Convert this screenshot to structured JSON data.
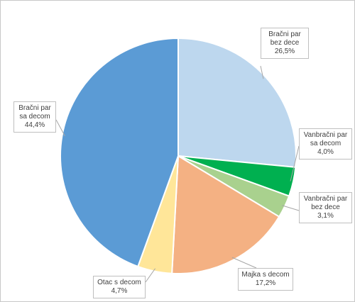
{
  "chart_data": {
    "type": "pie",
    "slices": [
      {
        "label_lines": [
          "Bračni par",
          "bez dece"
        ],
        "value_label": "26,5%",
        "value": 26.5,
        "color": "#bdd7ee"
      },
      {
        "label_lines": [
          "Vanbračni par",
          "sa decom"
        ],
        "value_label": "4,0%",
        "value": 4.0,
        "color": "#00b050"
      },
      {
        "label_lines": [
          "Vanbračni par",
          "bez dece"
        ],
        "value_label": "3,1%",
        "value": 3.1,
        "color": "#a9d18e"
      },
      {
        "label_lines": [
          "Majka s decom"
        ],
        "value_label": "17,2%",
        "value": 17.2,
        "color": "#f4b183"
      },
      {
        "label_lines": [
          "Otac s decom"
        ],
        "value_label": "4,7%",
        "value": 4.7,
        "color": "#ffe699"
      },
      {
        "label_lines": [
          "Bračni par",
          "sa decom"
        ],
        "value_label": "44,4%",
        "value": 44.4,
        "color": "#5b9bd5"
      }
    ],
    "start_angle": "12 o'clock",
    "direction": "clockwise",
    "slice_border_color": "#ffffff",
    "legend": "none",
    "data_labels": "callouts"
  }
}
